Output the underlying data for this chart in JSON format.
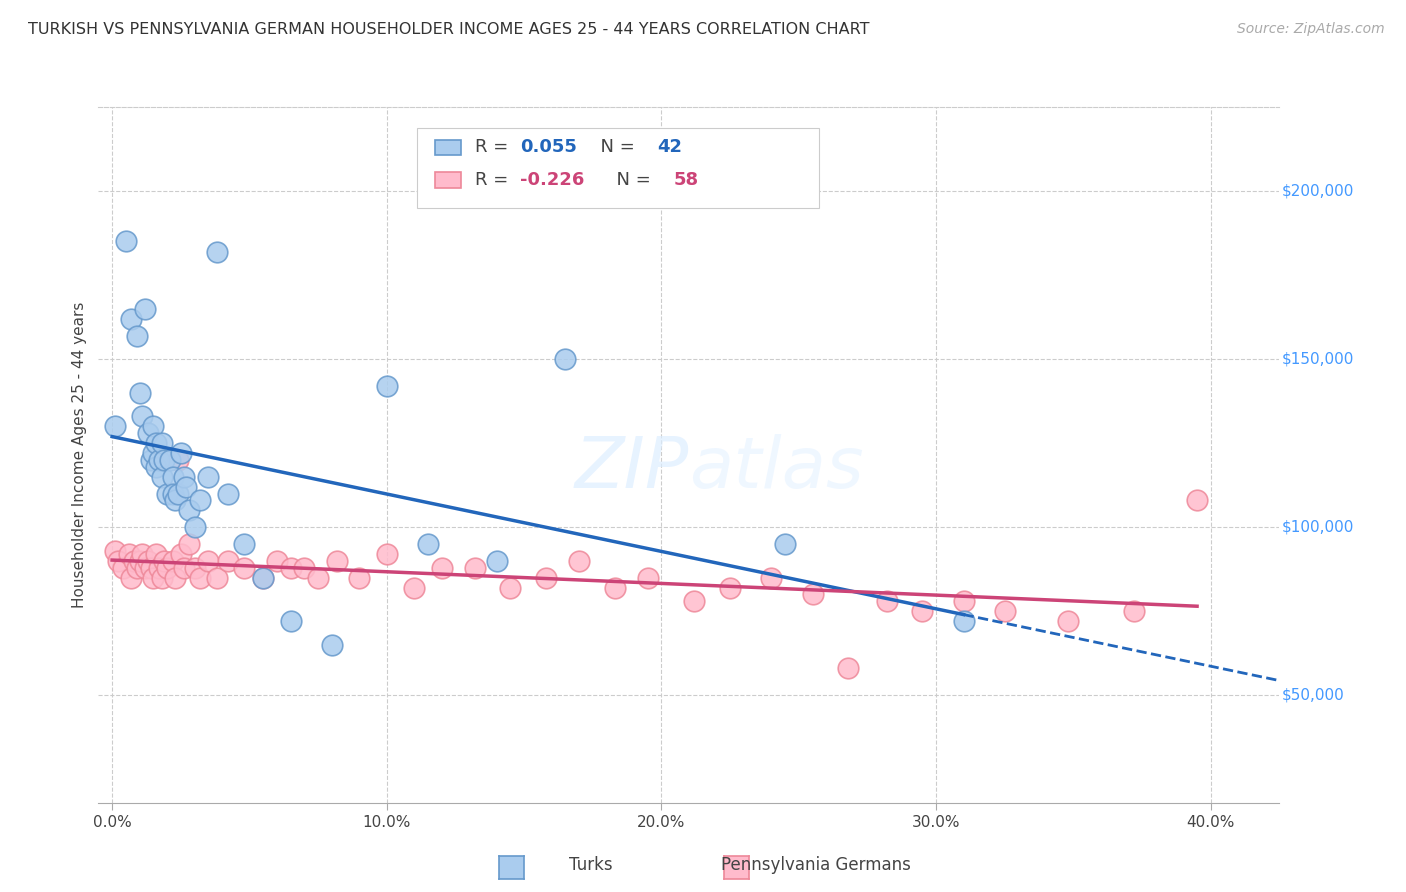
{
  "title": "TURKISH VS PENNSYLVANIA GERMAN HOUSEHOLDER INCOME AGES 25 - 44 YEARS CORRELATION CHART",
  "source": "Source: ZipAtlas.com",
  "ylabel": "Householder Income Ages 25 - 44 years",
  "xlabel_ticks": [
    "0.0%",
    "10.0%",
    "20.0%",
    "30.0%",
    "40.0%"
  ],
  "xlabel_tick_vals": [
    0.0,
    0.1,
    0.2,
    0.3,
    0.4
  ],
  "ytick_labels": [
    "$50,000",
    "$100,000",
    "$150,000",
    "$200,000"
  ],
  "ytick_vals": [
    50000,
    100000,
    150000,
    200000
  ],
  "xlim": [
    -0.005,
    0.425
  ],
  "ylim": [
    18000,
    225000
  ],
  "background_color": "#ffffff",
  "grid_color": "#cccccc",
  "watermark": "ZIPAtlas",
  "blue_R": "0.055",
  "blue_N": "42",
  "pink_R": "-0.226",
  "pink_N": "58",
  "blue_fill_color": "#aaccee",
  "blue_edge_color": "#6699cc",
  "pink_fill_color": "#ffbbcc",
  "pink_edge_color": "#ee8899",
  "blue_line_color": "#2266bb",
  "pink_line_color": "#cc4477",
  "turks_x": [
    0.001,
    0.005,
    0.007,
    0.009,
    0.01,
    0.011,
    0.012,
    0.013,
    0.014,
    0.015,
    0.015,
    0.016,
    0.016,
    0.017,
    0.018,
    0.018,
    0.019,
    0.02,
    0.021,
    0.022,
    0.022,
    0.023,
    0.024,
    0.025,
    0.026,
    0.027,
    0.028,
    0.03,
    0.032,
    0.035,
    0.038,
    0.042,
    0.048,
    0.055,
    0.065,
    0.08,
    0.1,
    0.115,
    0.14,
    0.165,
    0.245,
    0.31
  ],
  "turks_y": [
    130000,
    185000,
    162000,
    157000,
    140000,
    133000,
    165000,
    128000,
    120000,
    130000,
    122000,
    125000,
    118000,
    120000,
    125000,
    115000,
    120000,
    110000,
    120000,
    115000,
    110000,
    108000,
    110000,
    122000,
    115000,
    112000,
    105000,
    100000,
    108000,
    115000,
    182000,
    110000,
    95000,
    85000,
    72000,
    65000,
    142000,
    95000,
    90000,
    150000,
    95000,
    72000
  ],
  "pagermans_x": [
    0.001,
    0.002,
    0.004,
    0.006,
    0.007,
    0.008,
    0.009,
    0.01,
    0.011,
    0.012,
    0.013,
    0.014,
    0.015,
    0.016,
    0.017,
    0.018,
    0.019,
    0.02,
    0.022,
    0.023,
    0.024,
    0.025,
    0.026,
    0.028,
    0.03,
    0.032,
    0.035,
    0.038,
    0.042,
    0.048,
    0.055,
    0.06,
    0.065,
    0.07,
    0.075,
    0.082,
    0.09,
    0.1,
    0.11,
    0.12,
    0.132,
    0.145,
    0.158,
    0.17,
    0.183,
    0.195,
    0.212,
    0.225,
    0.24,
    0.255,
    0.268,
    0.282,
    0.295,
    0.31,
    0.325,
    0.348,
    0.372,
    0.395
  ],
  "pagermans_y": [
    93000,
    90000,
    88000,
    92000,
    85000,
    90000,
    88000,
    90000,
    92000,
    88000,
    90000,
    88000,
    85000,
    92000,
    88000,
    85000,
    90000,
    88000,
    90000,
    85000,
    120000,
    92000,
    88000,
    95000,
    88000,
    85000,
    90000,
    85000,
    90000,
    88000,
    85000,
    90000,
    88000,
    88000,
    85000,
    90000,
    85000,
    92000,
    82000,
    88000,
    88000,
    82000,
    85000,
    90000,
    82000,
    85000,
    78000,
    82000,
    85000,
    80000,
    58000,
    78000,
    75000,
    78000,
    75000,
    72000,
    75000,
    108000
  ]
}
